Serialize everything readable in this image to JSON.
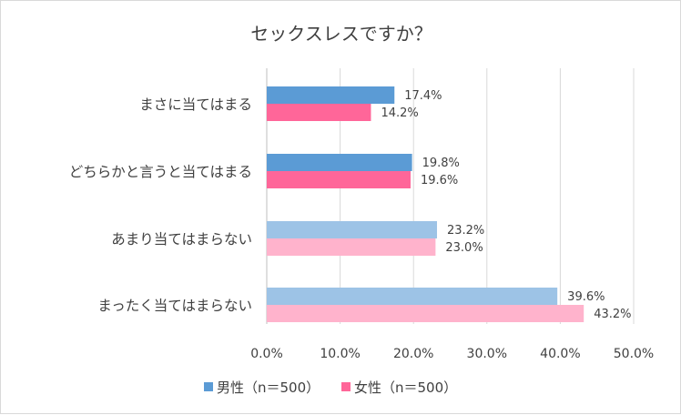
{
  "chart_data": {
    "type": "bar",
    "orientation": "horizontal",
    "title": "セックスレスですか？",
    "categories": [
      "まさに当てはまる",
      "どちらかと言うと当てはまる",
      "あまり当てはまらない",
      "まったく当てはまらない"
    ],
    "series": [
      {
        "name": "男性（n＝500）",
        "values": [
          17.4,
          19.8,
          23.2,
          39.6
        ],
        "data_labels": [
          "17.4%",
          "19.8%",
          "23.2%",
          "39.6%"
        ],
        "colors": [
          "#5b9bd5",
          "#5b9bd5",
          "#9dc3e6",
          "#9dc3e6"
        ],
        "legend_color": "#5b9bd5"
      },
      {
        "name": "女性（n＝500）",
        "values": [
          14.2,
          19.6,
          23.0,
          43.2
        ],
        "data_labels": [
          "14.2%",
          "19.6%",
          "23.0%",
          "43.2%"
        ],
        "colors": [
          "#ff6699",
          "#ff6699",
          "#ffb3cc",
          "#ffb3cc"
        ],
        "legend_color": "#ff6699"
      }
    ],
    "xlim": [
      0,
      50
    ],
    "xticks": [
      "0.0%",
      "10.0%",
      "20.0%",
      "30.0%",
      "40.0%",
      "50.0%"
    ],
    "grid": true,
    "legend_position": "bottom",
    "xlabel": "",
    "ylabel": ""
  }
}
